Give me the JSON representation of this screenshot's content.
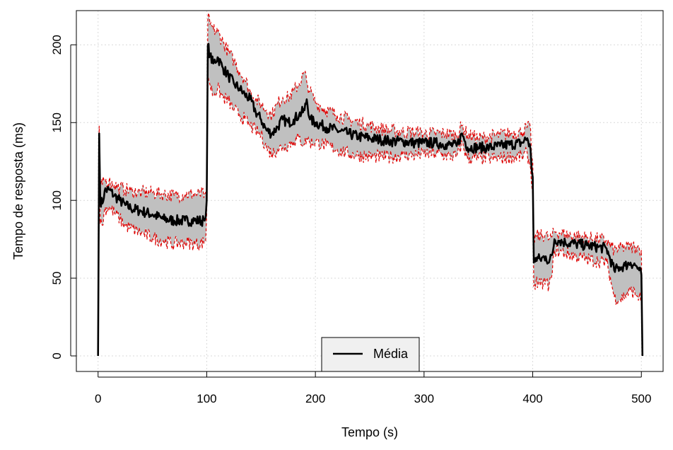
{
  "chart_data": {
    "type": "line",
    "xlabel": "Tempo (s)",
    "ylabel": "Tempo de resposta (ms)",
    "xlim": [
      -20,
      520
    ],
    "ylim": [
      -10,
      222
    ],
    "x_ticks": [
      0,
      100,
      200,
      300,
      400,
      500
    ],
    "y_ticks": [
      0,
      50,
      100,
      150,
      200
    ],
    "grid": true,
    "legend": {
      "position": "bottom-center",
      "entries": [
        "Média"
      ]
    },
    "colors": {
      "mean": "#000000",
      "band_fill": "#c0c0c0",
      "band_edge": "#e00000",
      "grid": "#d9d9d9"
    },
    "series": [
      {
        "name": "Média",
        "style": "solid",
        "x": [
          0,
          1,
          2,
          4,
          6,
          10,
          15,
          20,
          25,
          30,
          40,
          50,
          60,
          70,
          80,
          90,
          98,
          99,
          100,
          101,
          103,
          106,
          110,
          115,
          120,
          125,
          130,
          135,
          140,
          145,
          150,
          155,
          160,
          165,
          170,
          175,
          180,
          185,
          190,
          192,
          195,
          200,
          210,
          220,
          230,
          240,
          250,
          260,
          270,
          280,
          290,
          300,
          310,
          320,
          330,
          335,
          340,
          350,
          360,
          370,
          380,
          390,
          395,
          398,
          399,
          400,
          401,
          403,
          407,
          412,
          415,
          418,
          420,
          425,
          430,
          440,
          450,
          460,
          468,
          470,
          475,
          480,
          485,
          490,
          495,
          498,
          500,
          501
        ],
        "y": [
          0,
          143,
          100,
          98,
          106,
          107,
          103,
          100,
          97,
          95,
          93,
          91,
          88,
          87,
          87,
          87,
          87,
          89,
          100,
          200,
          193,
          188,
          192,
          185,
          180,
          175,
          172,
          168,
          165,
          157,
          152,
          145,
          143,
          147,
          152,
          150,
          152,
          155,
          158,
          165,
          152,
          150,
          147,
          145,
          143,
          141,
          140,
          139,
          138,
          138,
          137,
          137,
          137,
          136,
          135,
          143,
          134,
          134,
          134,
          135,
          136,
          137,
          140,
          133,
          120,
          115,
          60,
          63,
          62,
          64,
          60,
          65,
          75,
          74,
          73,
          72,
          71,
          70,
          69,
          65,
          55,
          57,
          58,
          60,
          58,
          55,
          52,
          0
        ]
      },
      {
        "name": "",
        "style": "band-upper",
        "x": [
          0,
          1,
          2,
          4,
          6,
          10,
          15,
          20,
          25,
          30,
          40,
          50,
          60,
          70,
          80,
          90,
          98,
          99,
          100,
          101,
          103,
          106,
          110,
          115,
          120,
          125,
          130,
          135,
          140,
          145,
          150,
          155,
          160,
          165,
          170,
          175,
          180,
          185,
          190,
          192,
          195,
          200,
          210,
          220,
          230,
          240,
          250,
          260,
          270,
          280,
          290,
          300,
          310,
          320,
          330,
          335,
          340,
          350,
          360,
          370,
          380,
          390,
          395,
          398,
          399,
          400,
          401,
          403,
          407,
          412,
          415,
          418,
          420,
          425,
          430,
          440,
          450,
          460,
          468,
          470,
          475,
          480,
          485,
          490,
          495,
          498,
          500,
          501
        ],
        "y": [
          0,
          148,
          112,
          110,
          113,
          112,
          110,
          108,
          107,
          106,
          105,
          105,
          104,
          103,
          104,
          104,
          104,
          105,
          108,
          218,
          213,
          210,
          208,
          202,
          195,
          190,
          183,
          178,
          170,
          165,
          162,
          158,
          155,
          162,
          166,
          166,
          170,
          175,
          182,
          176,
          170,
          163,
          158,
          155,
          152,
          150,
          148,
          146,
          145,
          144,
          144,
          143,
          143,
          143,
          142,
          148,
          142,
          140,
          141,
          142,
          143,
          144,
          147,
          146,
          128,
          125,
          75,
          77,
          77,
          78,
          75,
          77,
          80,
          79,
          78,
          77,
          76,
          75,
          74,
          72,
          68,
          69,
          70,
          70,
          70,
          70,
          68,
          0
        ]
      },
      {
        "name": "",
        "style": "band-lower",
        "x": [
          0,
          1,
          2,
          4,
          6,
          10,
          15,
          20,
          25,
          30,
          40,
          50,
          60,
          70,
          80,
          90,
          98,
          99,
          100,
          101,
          103,
          106,
          110,
          115,
          120,
          125,
          130,
          135,
          140,
          145,
          150,
          155,
          160,
          165,
          170,
          175,
          180,
          185,
          190,
          192,
          195,
          200,
          210,
          220,
          230,
          240,
          250,
          260,
          270,
          280,
          290,
          300,
          310,
          320,
          330,
          335,
          340,
          350,
          360,
          370,
          380,
          390,
          395,
          398,
          399,
          400,
          401,
          403,
          407,
          412,
          415,
          418,
          420,
          425,
          430,
          440,
          450,
          460,
          468,
          470,
          475,
          480,
          485,
          490,
          495,
          498,
          500,
          501
        ],
        "y": [
          0,
          138,
          85,
          84,
          94,
          96,
          92,
          88,
          84,
          82,
          79,
          76,
          74,
          72,
          73,
          72,
          73,
          74,
          91,
          182,
          174,
          168,
          172,
          166,
          164,
          158,
          155,
          152,
          148,
          145,
          142,
          134,
          130,
          133,
          134,
          136,
          138,
          140,
          136,
          140,
          137,
          138,
          135,
          133,
          130,
          129,
          128,
          128,
          128,
          129,
          129,
          130,
          130,
          129,
          128,
          137,
          127,
          127,
          127,
          127,
          128,
          128,
          130,
          121,
          110,
          104,
          45,
          48,
          45,
          48,
          45,
          53,
          68,
          67,
          66,
          64,
          62,
          61,
          60,
          55,
          38,
          36,
          39,
          42,
          40,
          38,
          35,
          0
        ]
      }
    ]
  }
}
